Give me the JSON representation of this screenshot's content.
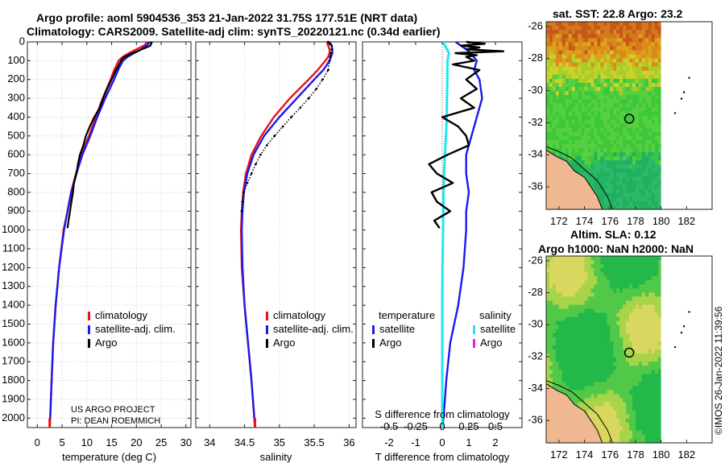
{
  "titles": {
    "line1": "Argo profile: aoml 5904536_353 21-Jan-2022 31.75S 177.51E (NRT data)",
    "line2": "Climatology: CARS2009. Satellite-adj clim: synTS_20220121.nc (0.34d earlier)",
    "sst_title": "sat. SST: 22.8 Argo: 23.2",
    "sla_title1": "Altim. SLA: 0.12",
    "sla_title2": "Argo h1000: NaN h2000: NaN"
  },
  "credit": {
    "line1": "US ARGO PROJECT",
    "line2": "PI: DEAN ROEMMICH"
  },
  "watermark": "©IMOS 26-Jan-2022 11:39:56",
  "legend_profile": [
    "climatology",
    "satellite-adj. clim.",
    "Argo"
  ],
  "legend_diff": {
    "temp_heading": "temperature",
    "sal_heading": "salinity",
    "temp_items": [
      "satellite",
      "Argo"
    ],
    "sal_items": [
      "satellite",
      "Argo"
    ]
  },
  "colors": {
    "climatology": "#ee1111",
    "satellite": "#1a1aee",
    "argo": "#000000",
    "sal_satellite": "#22e6ee",
    "sal_argo": "#ee22cc"
  },
  "chart_data": [
    {
      "type": "line",
      "name": "temperature-profile",
      "xlabel": "temperature (deg C)",
      "ylabel": "depth",
      "xlim": [
        -2,
        31
      ],
      "ylim": [
        2050,
        0
      ],
      "xticks": [
        0,
        5,
        10,
        15,
        20,
        25,
        30
      ],
      "yticks": [
        0,
        100,
        200,
        300,
        400,
        500,
        600,
        700,
        800,
        900,
        1000,
        1100,
        1200,
        1300,
        1400,
        1500,
        1600,
        1700,
        1800,
        1900,
        2000
      ],
      "grid": true,
      "series": [
        {
          "name": "climatology",
          "depth": [
            0,
            20,
            40,
            60,
            80,
            100,
            150,
            200,
            300,
            400,
            500,
            600,
            700,
            800,
            900,
            1000,
            1200,
            1400,
            1600,
            1800,
            2000,
            2050
          ],
          "values": [
            22.3,
            21.5,
            20,
            18.5,
            17.2,
            16.4,
            15.5,
            14.8,
            13.2,
            11.8,
            10.4,
            8.9,
            7.8,
            6.8,
            6.1,
            5.3,
            4.4,
            3.7,
            3.2,
            2.9,
            2.6,
            2.5
          ]
        },
        {
          "name": "satellite-adj. clim.",
          "depth": [
            0,
            20,
            40,
            60,
            80,
            100,
            150,
            200,
            300,
            400,
            500,
            600,
            700,
            800,
            900,
            1000,
            1200,
            1400,
            1600,
            1800,
            2000,
            2050
          ],
          "values": [
            22.8,
            22,
            21,
            19.5,
            18.2,
            17.3,
            16.3,
            15.5,
            13.7,
            12.1,
            10.7,
            9.1,
            7.9,
            6.9,
            6.1,
            5.4,
            4.4,
            3.7,
            3.2,
            2.9,
            2.6,
            2.5
          ]
        },
        {
          "name": "Argo",
          "depth": [
            0,
            5,
            10,
            20,
            30,
            40,
            50,
            60,
            70,
            80,
            90,
            100,
            150,
            200,
            250,
            300,
            350,
            400,
            450,
            500,
            550,
            600,
            650,
            700,
            750,
            800,
            850,
            900,
            950,
            990
          ],
          "values": [
            23.2,
            23,
            23,
            22.8,
            22,
            21,
            20.2,
            19.2,
            18.4,
            17.6,
            17.2,
            16.9,
            15.9,
            15,
            14.1,
            13.3,
            12.6,
            11.5,
            10.6,
            9.8,
            9.3,
            8.6,
            8.2,
            7.9,
            7.4,
            7.2,
            6.9,
            6.6,
            6.3,
            6.1
          ]
        }
      ]
    },
    {
      "type": "line",
      "name": "salinity-profile",
      "xlabel": "salinity",
      "ylim": [
        2050,
        0
      ],
      "xlim": [
        33.8,
        36.1
      ],
      "xticks": [
        34,
        34.5,
        35,
        35.5,
        36
      ],
      "grid": true,
      "series": [
        {
          "name": "climatology",
          "depth": [
            0,
            20,
            40,
            60,
            80,
            100,
            150,
            200,
            300,
            400,
            500,
            600,
            700,
            800,
            900,
            1000,
            1200,
            1400,
            1600,
            1800,
            2000,
            2050
          ],
          "values": [
            35.68,
            35.7,
            35.72,
            35.72,
            35.7,
            35.66,
            35.55,
            35.42,
            35.15,
            34.92,
            34.74,
            34.6,
            34.52,
            34.48,
            34.46,
            34.45,
            34.46,
            34.5,
            34.55,
            34.6,
            34.64,
            34.65
          ]
        },
        {
          "name": "satellite-adj. clim.",
          "depth": [
            0,
            20,
            40,
            60,
            80,
            100,
            150,
            200,
            300,
            400,
            500,
            600,
            700,
            800,
            900,
            1000,
            1200,
            1400,
            1600,
            1800,
            2000,
            2050
          ],
          "values": [
            35.72,
            35.75,
            35.76,
            35.76,
            35.74,
            35.72,
            35.63,
            35.5,
            35.25,
            35,
            34.78,
            34.63,
            34.54,
            34.49,
            34.47,
            34.46,
            34.47,
            34.5,
            34.55,
            34.6,
            34.64,
            34.65
          ]
        },
        {
          "name": "Argo",
          "depth": [
            0,
            10,
            20,
            40,
            60,
            80,
            100,
            150,
            200,
            250,
            300,
            350,
            400,
            450,
            500,
            550,
            600,
            650,
            700,
            750,
            800,
            850,
            900
          ],
          "values": [
            35.7,
            35.72,
            35.75,
            35.75,
            35.74,
            35.73,
            35.72,
            35.7,
            35.62,
            35.53,
            35.42,
            35.3,
            35.17,
            35.05,
            34.93,
            34.82,
            34.73,
            34.66,
            34.6,
            34.54,
            34.49,
            34.47,
            34.46
          ]
        }
      ]
    },
    {
      "type": "line",
      "name": "difference-from-climatology",
      "xlabel": "T difference from climatology",
      "xlabel_top": "S difference from climatology",
      "ylim": [
        2050,
        0
      ],
      "xlim": [
        -3,
        3
      ],
      "xticks": [
        -2,
        -1,
        0,
        1,
        2
      ],
      "top_ticks": [
        -0.5,
        -0.25,
        0,
        0.25,
        0.5
      ],
      "grid": false,
      "series": [
        {
          "name": "temperature satellite",
          "depth": [
            0,
            50,
            100,
            150,
            200,
            300,
            400,
            500,
            600,
            700,
            800,
            900,
            1000,
            1200,
            1400,
            1600,
            1800,
            2000,
            2050
          ],
          "values": [
            0.5,
            1,
            1.3,
            1.2,
            1.4,
            1.5,
            1.3,
            1.1,
            0.9,
            0.9,
            1,
            0.9,
            0.9,
            0.8,
            0.6,
            0.3,
            0.15,
            0.05,
            0
          ]
        },
        {
          "name": "temperature Argo",
          "depth": [
            0,
            10,
            20,
            30,
            40,
            50,
            60,
            70,
            80,
            100,
            120,
            150,
            200,
            250,
            300,
            350,
            400,
            450,
            500,
            550,
            600,
            650,
            700,
            750,
            800,
            850,
            900,
            950,
            990
          ],
          "values": [
            0.9,
            1.6,
            0.7,
            1.4,
            0.9,
            2.3,
            0.5,
            1.3,
            0.9,
            1.2,
            0.4,
            1.4,
            0.9,
            1.3,
            0.7,
            1.2,
            0,
            0.6,
            0.9,
            1,
            0.2,
            -0.5,
            -0.2,
            0.4,
            -0.4,
            -0.2,
            0.3,
            -0.3,
            -0.1
          ]
        },
        {
          "name": "salinity satellite",
          "depth": [
            0,
            20,
            40,
            60,
            80,
            100,
            150,
            200,
            300,
            400,
            500,
            600,
            700,
            800,
            1000,
            1200,
            1400,
            1600,
            1800,
            2000,
            2050
          ],
          "values": [
            0.05,
            0.1,
            0.18,
            0.25,
            0.22,
            0.2,
            0.19,
            0.19,
            0.18,
            0.17,
            0.14,
            0.1,
            0.07,
            0.05,
            0.03,
            0.01,
            0,
            0,
            0,
            0,
            0
          ]
        },
        {
          "name": "salinity Argo",
          "depth": [],
          "values": []
        }
      ]
    },
    {
      "type": "heatmap",
      "name": "satellite-sst-map",
      "xticks": [
        172,
        174,
        176,
        178,
        180,
        182
      ],
      "yticks": [
        -26,
        -28,
        -30,
        -32,
        -34,
        -36
      ],
      "xlim": [
        171,
        184
      ],
      "ylim": [
        -37.4,
        -25.7
      ],
      "data_extent": [
        171,
        180,
        -37.4,
        -25.7
      ],
      "float_position": [
        177.51,
        -31.75
      ],
      "islands": [
        [
          182.2,
          -29.2
        ],
        [
          181.8,
          -30.1
        ],
        [
          181.6,
          -30.5
        ],
        [
          181.1,
          -31.4
        ]
      ]
    },
    {
      "type": "heatmap",
      "name": "altimetry-sla-map",
      "xticks": [
        172,
        174,
        176,
        178,
        180,
        182
      ],
      "yticks": [
        -26,
        -28,
        -30,
        -32,
        -34,
        -36
      ],
      "xlim": [
        171,
        184
      ],
      "ylim": [
        -37.4,
        -25.7
      ],
      "data_extent": [
        171,
        180,
        -37.4,
        -25.7
      ],
      "float_position": [
        177.51,
        -31.75
      ],
      "islands": [
        [
          182.2,
          -29.2
        ],
        [
          181.8,
          -30.1
        ],
        [
          181.6,
          -30.5
        ],
        [
          181.1,
          -31.4
        ]
      ]
    }
  ]
}
